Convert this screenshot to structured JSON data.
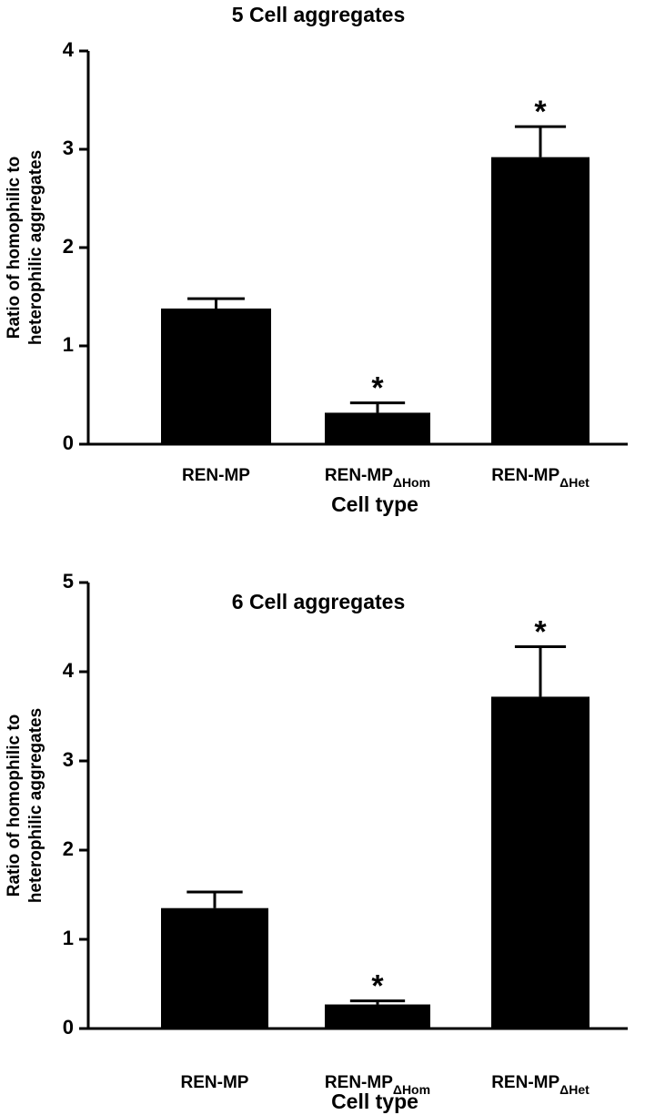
{
  "chart_data": [
    {
      "type": "bar",
      "title": "5 Cell aggregates",
      "ylabel": [
        "Ratio of homophilic to",
        "heterophilic aggregates"
      ],
      "xlabel": "Cell type",
      "categories": [
        "REN-MP",
        {
          "text": "REN-MP",
          "subscript": "ΔHom"
        },
        {
          "text": "REN-MP",
          "subscript": "ΔHet"
        }
      ],
      "values": [
        1.38,
        0.32,
        2.92
      ],
      "errors": [
        0.1,
        0.1,
        0.31
      ],
      "significance": [
        null,
        "*",
        "*"
      ],
      "color": "#000000",
      "ylim": [
        0,
        4
      ],
      "yticks": [
        0,
        1,
        2,
        3,
        4
      ]
    },
    {
      "type": "bar",
      "title": "6 Cell aggregates",
      "ylabel": [
        "Ratio of homophilic to",
        "heterophilic aggregates"
      ],
      "xlabel": "Cell type",
      "categories": [
        "REN-MP",
        {
          "text": "REN-MP",
          "subscript": "ΔHom"
        },
        {
          "text": "REN-MP",
          "subscript": "ΔHet"
        }
      ],
      "values": [
        1.35,
        0.27,
        3.72
      ],
      "errors": [
        0.18,
        0.04,
        0.56
      ],
      "significance": [
        null,
        "*",
        "*"
      ],
      "color": "#000000",
      "ylim": [
        0,
        5
      ],
      "yticks": [
        0,
        1,
        2,
        3,
        4,
        5
      ]
    }
  ]
}
